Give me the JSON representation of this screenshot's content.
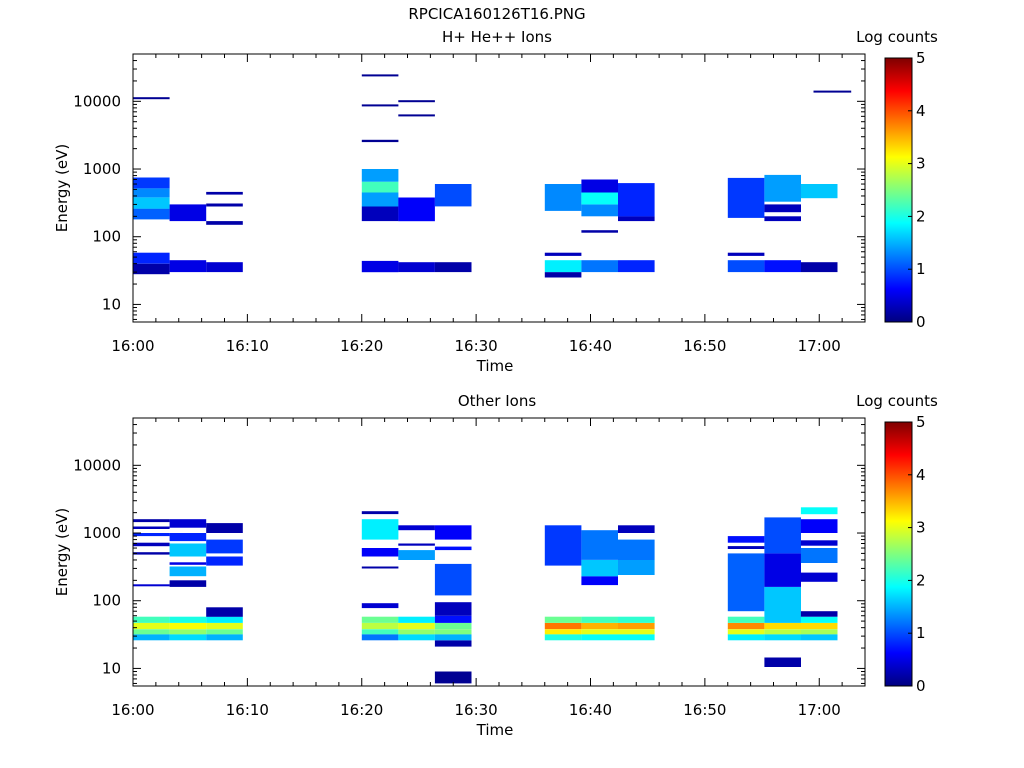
{
  "figure_title": "RPCICA160126T16.PNG",
  "colors": {
    "jet": [
      "#00007f",
      "#0000ff",
      "#007fff",
      "#00ffff",
      "#7fff7f",
      "#ffff00",
      "#ff7f00",
      "#ff0000",
      "#7f0000"
    ],
    "frame": "#000000"
  },
  "chart_data": [
    {
      "type": "heatmap",
      "title": "H+ He++ Ions",
      "xlabel": "Time",
      "ylabel": "Energy (eV)",
      "x_ticks": [
        "16:00",
        "16:10",
        "16:20",
        "16:30",
        "16:40",
        "16:50",
        "17:00"
      ],
      "x_tick_minutes": [
        0,
        10,
        20,
        30,
        40,
        50,
        60
      ],
      "xlim_minutes": [
        0,
        64
      ],
      "y_scale": "log",
      "ylim": [
        5.5,
        50000
      ],
      "y_ticks": [
        10,
        100,
        1000,
        10000
      ],
      "y_tick_labels": [
        "10",
        "100",
        "1000",
        "10000"
      ],
      "colorbar": {
        "label": "Log counts",
        "min": 0,
        "max": 5,
        "ticks": [
          "0",
          "1",
          "2",
          "3",
          "4",
          "5"
        ]
      },
      "cells": [
        [
          0,
          3.2,
          28,
          40,
          0.2
        ],
        [
          0,
          3.2,
          40,
          58,
          0.8
        ],
        [
          0,
          3.2,
          180,
          260,
          1.1
        ],
        [
          0,
          3.2,
          260,
          380,
          1.6
        ],
        [
          0,
          3.2,
          380,
          520,
          1.3
        ],
        [
          0,
          3.2,
          520,
          750,
          0.9
        ],
        [
          0,
          3.2,
          11000,
          11500,
          0.1
        ],
        [
          3.2,
          6.4,
          30,
          45,
          0.5
        ],
        [
          3.2,
          6.4,
          170,
          300,
          0.5
        ],
        [
          6.4,
          9.6,
          30,
          42,
          0.4
        ],
        [
          6.4,
          9.6,
          150,
          170,
          0.2
        ],
        [
          6.4,
          9.6,
          280,
          310,
          0.2
        ],
        [
          6.4,
          9.6,
          420,
          460,
          0.2
        ],
        [
          20,
          23.2,
          30,
          44,
          0.5
        ],
        [
          20,
          23.2,
          170,
          280,
          0.3
        ],
        [
          20,
          23.2,
          280,
          450,
          1.4
        ],
        [
          20,
          23.2,
          450,
          650,
          2.2
        ],
        [
          20,
          23.2,
          650,
          1000,
          1.4
        ],
        [
          20,
          23.2,
          2500,
          2700,
          0.1
        ],
        [
          20,
          23.2,
          8500,
          9000,
          0.1
        ],
        [
          20,
          23.2,
          24000,
          25000,
          0.1
        ],
        [
          23.2,
          26.4,
          30,
          42,
          0.4
        ],
        [
          23.2,
          26.4,
          170,
          380,
          0.6
        ],
        [
          23.2,
          26.4,
          6000,
          6400,
          0.1
        ],
        [
          23.2,
          26.4,
          9800,
          10400,
          0.1
        ],
        [
          26.4,
          29.6,
          30,
          42,
          0.2
        ],
        [
          26.4,
          29.6,
          280,
          600,
          1.0
        ],
        [
          36,
          39.2,
          25,
          30,
          0.2
        ],
        [
          36,
          39.2,
          30,
          45,
          1.8
        ],
        [
          36,
          39.2,
          52,
          58,
          0.3
        ],
        [
          36,
          39.2,
          240,
          600,
          1.3
        ],
        [
          39.2,
          42.4,
          30,
          45,
          1.2
        ],
        [
          39.2,
          42.4,
          115,
          125,
          0.2
        ],
        [
          39.2,
          42.4,
          200,
          300,
          1.3
        ],
        [
          39.2,
          42.4,
          300,
          450,
          1.9
        ],
        [
          39.2,
          42.4,
          450,
          700,
          0.5
        ],
        [
          42.4,
          45.6,
          30,
          45,
          0.8
        ],
        [
          42.4,
          45.6,
          170,
          200,
          0.3
        ],
        [
          42.4,
          45.6,
          200,
          620,
          0.8
        ],
        [
          52,
          55.2,
          30,
          45,
          1.0
        ],
        [
          52,
          55.2,
          52,
          58,
          0.3
        ],
        [
          52,
          55.2,
          190,
          740,
          0.9
        ],
        [
          55.2,
          58.4,
          30,
          45,
          0.7
        ],
        [
          55.2,
          58.4,
          170,
          200,
          0.3
        ],
        [
          55.2,
          58.4,
          230,
          300,
          0.3
        ],
        [
          55.2,
          58.4,
          330,
          820,
          1.4
        ],
        [
          58.4,
          61.6,
          30,
          42,
          0.2
        ],
        [
          58.4,
          61.6,
          370,
          600,
          1.6
        ],
        [
          59.5,
          62.8,
          13700,
          14400,
          0.1
        ]
      ]
    },
    {
      "type": "heatmap",
      "title": "Other Ions",
      "xlabel": "Time",
      "ylabel": "Energy (eV)",
      "x_ticks": [
        "16:00",
        "16:10",
        "16:20",
        "16:30",
        "16:40",
        "16:50",
        "17:00"
      ],
      "x_tick_minutes": [
        0,
        10,
        20,
        30,
        40,
        50,
        60
      ],
      "xlim_minutes": [
        0,
        64
      ],
      "y_scale": "log",
      "ylim": [
        5.5,
        50000
      ],
      "y_ticks": [
        10,
        100,
        1000,
        10000
      ],
      "y_tick_labels": [
        "10",
        "100",
        "1000",
        "10000"
      ],
      "colorbar": {
        "label": "Log counts",
        "min": 0,
        "max": 5,
        "ticks": [
          "0",
          "1",
          "2",
          "3",
          "4",
          "5"
        ]
      },
      "cells": [
        [
          0,
          3.2,
          26,
          32,
          1.5
        ],
        [
          0,
          3.2,
          32,
          38,
          2.4
        ],
        [
          0,
          3.2,
          38,
          47,
          3.0
        ],
        [
          0,
          3.2,
          47,
          58,
          2.2
        ],
        [
          0,
          3.2,
          165,
          175,
          0.4
        ],
        [
          0,
          3.2,
          480,
          520,
          0.2
        ],
        [
          0,
          3.2,
          640,
          720,
          0.3
        ],
        [
          0,
          3.2,
          900,
          1000,
          0.8
        ],
        [
          0,
          3.2,
          1150,
          1250,
          0.3
        ],
        [
          0,
          3.2,
          1450,
          1600,
          0.2
        ],
        [
          3.2,
          6.4,
          26,
          32,
          1.7
        ],
        [
          3.2,
          6.4,
          32,
          38,
          2.6
        ],
        [
          3.2,
          6.4,
          38,
          47,
          3.1
        ],
        [
          3.2,
          6.4,
          47,
          58,
          2.0
        ],
        [
          3.2,
          6.4,
          160,
          200,
          0.2
        ],
        [
          3.2,
          6.4,
          230,
          320,
          1.5
        ],
        [
          3.2,
          6.4,
          340,
          370,
          0.5
        ],
        [
          3.2,
          6.4,
          450,
          700,
          1.6
        ],
        [
          3.2,
          6.4,
          760,
          1000,
          0.8
        ],
        [
          3.2,
          6.4,
          1200,
          1600,
          0.4
        ],
        [
          6.4,
          9.6,
          26,
          32,
          1.5
        ],
        [
          6.4,
          9.6,
          32,
          38,
          2.4
        ],
        [
          6.4,
          9.6,
          38,
          47,
          3.0
        ],
        [
          6.4,
          9.6,
          47,
          58,
          1.8
        ],
        [
          6.4,
          9.6,
          58,
          80,
          0.2
        ],
        [
          6.4,
          9.6,
          330,
          450,
          0.8
        ],
        [
          6.4,
          9.6,
          500,
          800,
          0.9
        ],
        [
          6.4,
          9.6,
          1000,
          1400,
          0.2
        ],
        [
          20,
          23.2,
          26,
          32,
          1.2
        ],
        [
          20,
          23.2,
          32,
          38,
          2.2
        ],
        [
          20,
          23.2,
          38,
          47,
          2.8
        ],
        [
          20,
          23.2,
          47,
          58,
          2.4
        ],
        [
          20,
          23.2,
          78,
          92,
          0.4
        ],
        [
          20,
          23.2,
          300,
          320,
          0.2
        ],
        [
          20,
          23.2,
          450,
          600,
          0.6
        ],
        [
          20,
          23.2,
          800,
          1600,
          1.8
        ],
        [
          20,
          23.2,
          1900,
          2100,
          0.2
        ],
        [
          23.2,
          26.4,
          26,
          32,
          1.7
        ],
        [
          23.2,
          26.4,
          32,
          38,
          2.6
        ],
        [
          23.2,
          26.4,
          38,
          47,
          3.0
        ],
        [
          23.2,
          26.4,
          47,
          58,
          1.8
        ],
        [
          23.2,
          26.4,
          400,
          560,
          1.4
        ],
        [
          23.2,
          26.4,
          650,
          700,
          0.3
        ],
        [
          23.2,
          26.4,
          1100,
          1300,
          0.4
        ],
        [
          26.4,
          29.6,
          6,
          9,
          0.1
        ],
        [
          26.4,
          29.6,
          21,
          26,
          0.2
        ],
        [
          26.4,
          29.6,
          26,
          32,
          1.5
        ],
        [
          26.4,
          29.6,
          32,
          38,
          2.5
        ],
        [
          26.4,
          29.6,
          38,
          47,
          2.4
        ],
        [
          26.4,
          29.6,
          47,
          60,
          0.7
        ],
        [
          26.4,
          29.6,
          60,
          95,
          0.3
        ],
        [
          26.4,
          29.6,
          120,
          350,
          1.0
        ],
        [
          26.4,
          29.6,
          560,
          630,
          0.7
        ],
        [
          26.4,
          29.6,
          800,
          1300,
          0.6
        ],
        [
          36,
          39.2,
          26,
          32,
          2.0
        ],
        [
          36,
          39.2,
          32,
          38,
          3.2
        ],
        [
          36,
          39.2,
          38,
          47,
          3.8
        ],
        [
          36,
          39.2,
          47,
          58,
          2.4
        ],
        [
          36,
          39.2,
          330,
          1300,
          0.9
        ],
        [
          39.2,
          42.4,
          26,
          32,
          1.9
        ],
        [
          39.2,
          42.4,
          32,
          38,
          3.0
        ],
        [
          39.2,
          42.4,
          38,
          47,
          3.5
        ],
        [
          39.2,
          42.4,
          47,
          58,
          2.2
        ],
        [
          39.2,
          42.4,
          170,
          230,
          0.6
        ],
        [
          39.2,
          42.4,
          230,
          400,
          1.6
        ],
        [
          39.2,
          42.4,
          400,
          1100,
          1.2
        ],
        [
          42.4,
          45.6,
          26,
          32,
          1.9
        ],
        [
          42.4,
          45.6,
          32,
          38,
          3.0
        ],
        [
          42.4,
          45.6,
          38,
          47,
          3.6
        ],
        [
          42.4,
          45.6,
          47,
          58,
          2.1
        ],
        [
          42.4,
          45.6,
          240,
          400,
          1.4
        ],
        [
          42.4,
          45.6,
          400,
          800,
          1.2
        ],
        [
          42.4,
          45.6,
          1000,
          1300,
          0.3
        ],
        [
          52,
          55.2,
          26,
          32,
          1.8
        ],
        [
          52,
          55.2,
          32,
          38,
          3.0
        ],
        [
          52,
          55.2,
          38,
          47,
          3.7
        ],
        [
          52,
          55.2,
          47,
          58,
          2.2
        ],
        [
          52,
          55.2,
          70,
          500,
          1.1
        ],
        [
          52,
          55.2,
          580,
          640,
          0.3
        ],
        [
          52,
          55.2,
          720,
          900,
          0.7
        ],
        [
          55.2,
          58.4,
          10.5,
          14.5,
          0.2
        ],
        [
          55.2,
          58.4,
          26,
          32,
          1.7
        ],
        [
          55.2,
          58.4,
          32,
          38,
          2.8
        ],
        [
          55.2,
          58.4,
          38,
          47,
          3.3
        ],
        [
          55.2,
          58.4,
          47,
          160,
          1.6
        ],
        [
          55.2,
          58.4,
          160,
          500,
          0.5
        ],
        [
          55.2,
          58.4,
          500,
          1700,
          1.0
        ],
        [
          58.4,
          61.6,
          26,
          32,
          1.6
        ],
        [
          58.4,
          61.6,
          32,
          38,
          2.7
        ],
        [
          58.4,
          61.6,
          38,
          47,
          3.3
        ],
        [
          58.4,
          61.6,
          47,
          58,
          1.9
        ],
        [
          58.4,
          61.6,
          58,
          70,
          0.2
        ],
        [
          58.4,
          61.6,
          190,
          260,
          0.4
        ],
        [
          58.4,
          61.6,
          360,
          600,
          1.2
        ],
        [
          58.4,
          61.6,
          650,
          780,
          0.4
        ],
        [
          58.4,
          61.6,
          1000,
          1600,
          0.6
        ],
        [
          58.4,
          61.6,
          1900,
          2400,
          1.9
        ]
      ]
    }
  ]
}
